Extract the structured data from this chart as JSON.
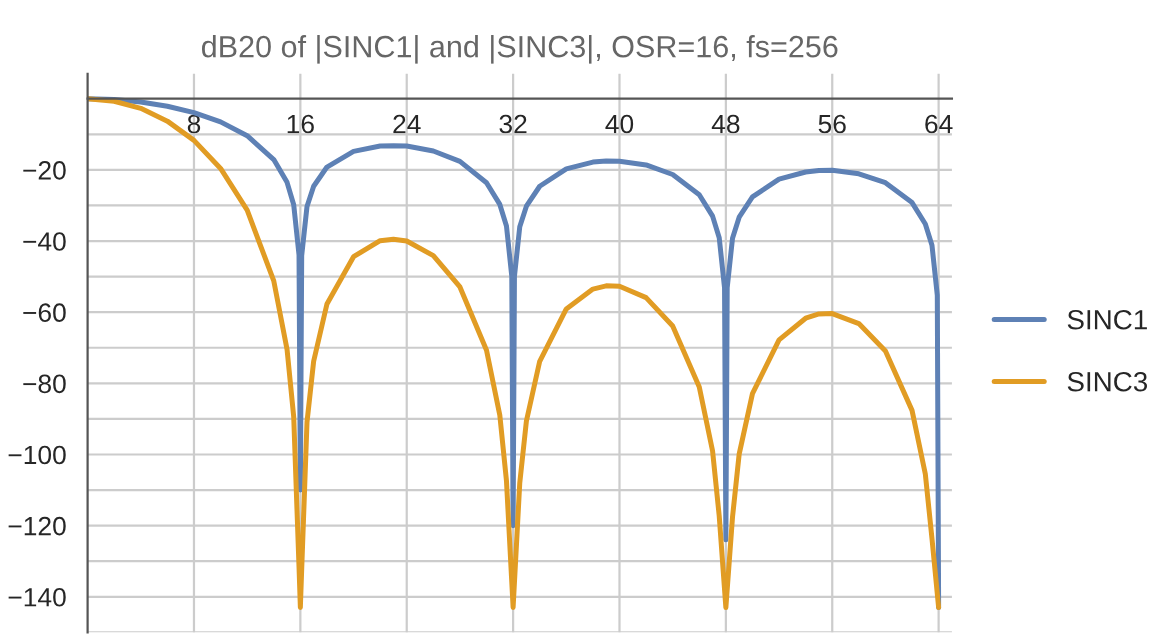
{
  "chart_data": {
    "type": "line",
    "title": "dB20 of |SINC1| and |SINC3|, OSR=16, fs=256",
    "series": [
      {
        "name": "SINC1",
        "color": "#5e81b5",
        "x": [
          0,
          2,
          4,
          6,
          8,
          10,
          12,
          14,
          15,
          15.5,
          15.9,
          16,
          16.1,
          16.5,
          17,
          18,
          20,
          22,
          23,
          24,
          26,
          28,
          30,
          31,
          31.5,
          31.9,
          32,
          32.1,
          32.5,
          33,
          34,
          36,
          38,
          39,
          40,
          42,
          44,
          46,
          47,
          47.5,
          47.9,
          48,
          48.1,
          48.5,
          49,
          50,
          52,
          54,
          55,
          56,
          58,
          60,
          62,
          63,
          63.5,
          63.9,
          64
        ],
        "values": [
          0,
          -0.2,
          -0.9,
          -2.1,
          -3.9,
          -6.5,
          -10.4,
          -17.1,
          -23.5,
          -29.8,
          -43.9,
          -110,
          -44.1,
          -30.3,
          -24.6,
          -19.2,
          -14.8,
          -13.3,
          -13.2,
          -13.3,
          -14.7,
          -17.6,
          -23.6,
          -29.7,
          -35.8,
          -49.9,
          -120,
          -49.9,
          -36.0,
          -30.2,
          -24.6,
          -19.7,
          -17.8,
          -17.5,
          -17.6,
          -18.6,
          -21.3,
          -27.0,
          -33.0,
          -39.1,
          -53.1,
          -124,
          -53.1,
          -39.2,
          -33.3,
          -27.6,
          -22.6,
          -20.6,
          -20.2,
          -20.1,
          -21.1,
          -23.6,
          -29.2,
          -35.2,
          -41.2,
          -55.2,
          -143
        ]
      },
      {
        "name": "SINC3",
        "color": "#e19c24",
        "x": [
          0,
          2,
          4,
          6,
          8,
          10,
          12,
          14,
          15,
          15.5,
          15.9,
          16,
          16.1,
          16.5,
          17,
          18,
          20,
          22,
          23,
          24,
          26,
          28,
          30,
          31,
          31.5,
          32,
          32.5,
          33,
          34,
          36,
          38,
          39,
          40,
          42,
          44,
          46,
          47,
          47.5,
          48,
          48.5,
          49,
          50,
          52,
          54,
          55,
          56,
          58,
          60,
          62,
          63,
          63.5,
          64
        ],
        "values": [
          0,
          -0.7,
          -2.7,
          -6.3,
          -11.7,
          -19.6,
          -31.3,
          -51.2,
          -70.5,
          -89.4,
          -131.7,
          -143,
          -132.3,
          -90.9,
          -73.8,
          -57.7,
          -44.4,
          -39.9,
          -39.5,
          -40.0,
          -44.1,
          -52.9,
          -70.7,
          -89.0,
          -107.4,
          -143,
          -108.0,
          -90.6,
          -73.8,
          -59.1,
          -53.5,
          -52.6,
          -52.7,
          -55.9,
          -63.9,
          -81.0,
          -99.0,
          -117.3,
          -143,
          -117.6,
          -99.9,
          -82.9,
          -67.8,
          -61.7,
          -60.5,
          -60.4,
          -63.2,
          -70.9,
          -87.6,
          -105.5,
          -123.6,
          -143
        ]
      }
    ],
    "xlim": [
      0,
      65
    ],
    "ylim": [
      -150,
      7
    ],
    "xticks": [
      8,
      16,
      24,
      32,
      40,
      48,
      56,
      64
    ],
    "yticks": [
      {
        "value": -10,
        "label": null
      },
      -20,
      {
        "value": -30,
        "label": null
      },
      -40,
      {
        "value": -50,
        "label": null
      },
      -60,
      {
        "value": -70,
        "label": null
      },
      -80,
      {
        "value": -90,
        "label": null
      },
      -100,
      {
        "value": -110,
        "label": null
      },
      -120,
      {
        "value": -130,
        "label": null
      },
      -140,
      {
        "value": -150,
        "label": null
      }
    ],
    "grid": true,
    "legend": "right",
    "line_style": "solid",
    "marker": "none"
  }
}
